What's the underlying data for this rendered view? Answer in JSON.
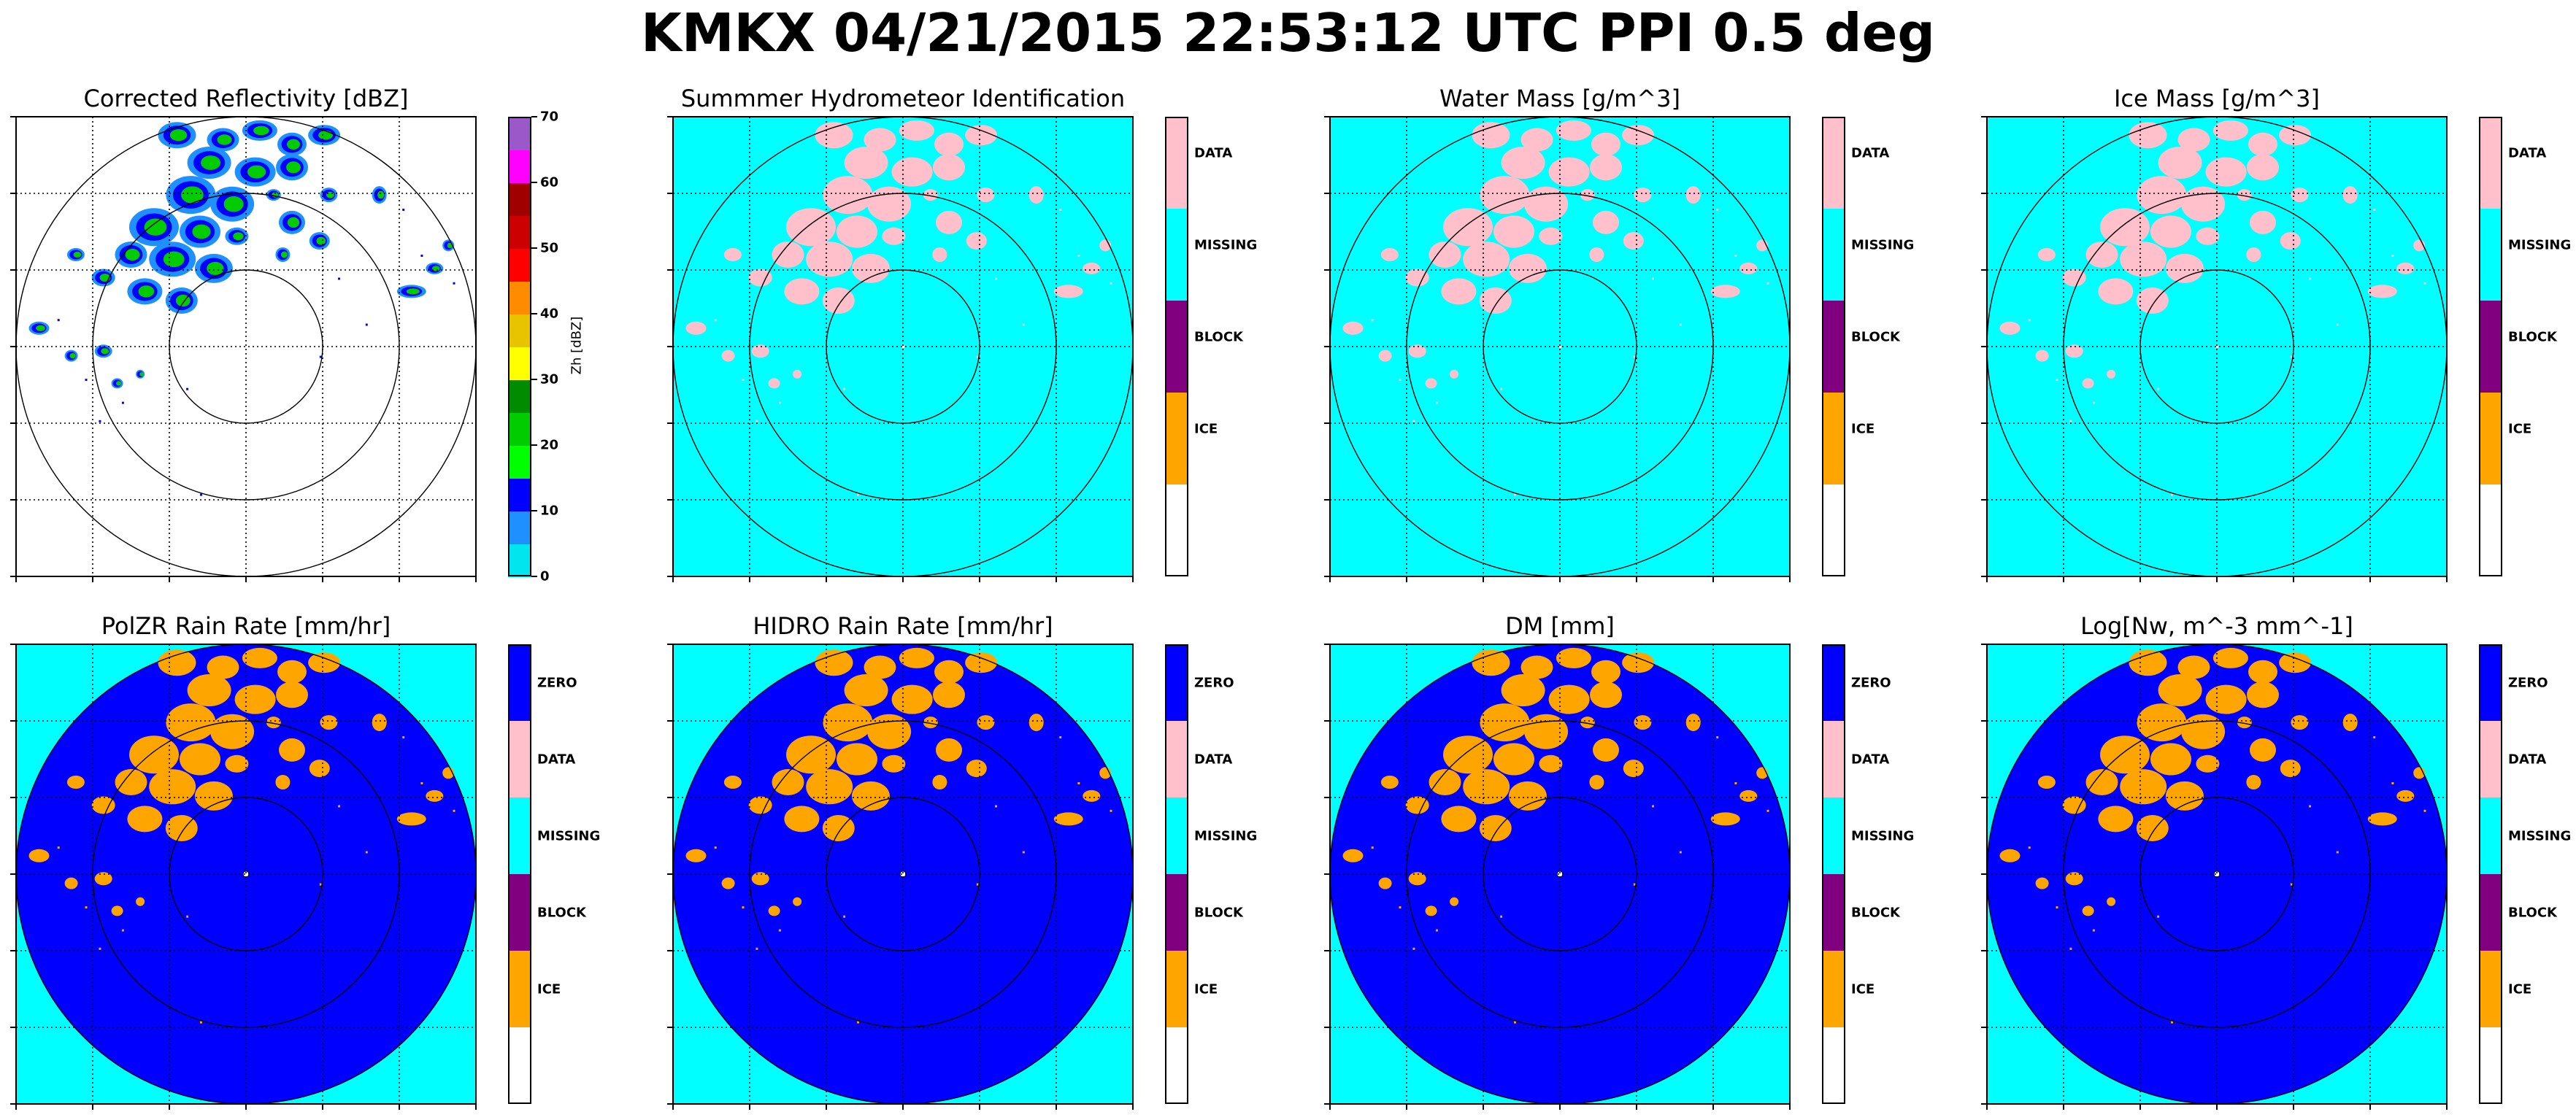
{
  "title": "KMKX 04/21/2015 22:53:12 UTC PPI 0.5 deg",
  "colors": {
    "ice": "#ffa500",
    "block": "#800080",
    "missing": "#00ffff",
    "data": "#ffc0cb",
    "zero": "#0000ff",
    "empty": "#ffffff"
  },
  "labels": {
    "data": "DATA",
    "missing": "MISSING",
    "block": "BLOCK",
    "ice": "ICE",
    "zero": "ZERO"
  },
  "reflectivity_colorbar": {
    "label": "Zh [dBZ]",
    "ticks": [
      "0",
      "10",
      "20",
      "30",
      "40",
      "50",
      "60",
      "70"
    ],
    "colors": [
      "#00e5ee",
      "#1e90ff",
      "#0000ff",
      "#00ff00",
      "#00cc00",
      "#008b00",
      "#ffff00",
      "#e8c400",
      "#ff8c00",
      "#ff0000",
      "#cc0000",
      "#a00000",
      "#ff00ff",
      "#9a58c8"
    ]
  },
  "chart_data": [
    {
      "type": "heatmap",
      "title": "Corrected Reflectivity [dBZ]",
      "kind": "reflectivity",
      "colorbar": "reflectivity_colorbar",
      "grid": true,
      "range_rings_km": [
        50,
        100,
        150
      ]
    },
    {
      "type": "heatmap",
      "title": "Summmer Hydrometeor Identification",
      "kind": "category",
      "categories_top_to_bottom": [
        "DATA",
        "MISSING",
        "BLOCK",
        "ICE",
        ""
      ],
      "background": "MISSING",
      "echo": "DATA",
      "grid": true,
      "range_rings_km": [
        50,
        100,
        150
      ]
    },
    {
      "type": "heatmap",
      "title": "Water Mass [g/m^3]",
      "kind": "category",
      "categories_top_to_bottom": [
        "DATA",
        "MISSING",
        "BLOCK",
        "ICE",
        ""
      ],
      "background": "MISSING",
      "echo": "DATA",
      "grid": true,
      "range_rings_km": [
        50,
        100,
        150
      ]
    },
    {
      "type": "heatmap",
      "title": "Ice Mass [g/m^3]",
      "kind": "category",
      "categories_top_to_bottom": [
        "DATA",
        "MISSING",
        "BLOCK",
        "ICE",
        ""
      ],
      "background": "MISSING",
      "echo": "DATA",
      "grid": true,
      "range_rings_km": [
        50,
        100,
        150
      ]
    },
    {
      "type": "heatmap",
      "title": "PolZR Rain Rate [mm/hr]",
      "kind": "rain",
      "categories_top_to_bottom": [
        "ZERO",
        "DATA",
        "MISSING",
        "BLOCK",
        "ICE",
        ""
      ],
      "background": "MISSING",
      "disk": "ZERO",
      "echo": "ICE",
      "grid": true,
      "range_rings_km": [
        50,
        100,
        150
      ]
    },
    {
      "type": "heatmap",
      "title": "HIDRO Rain Rate [mm/hr]",
      "kind": "rain",
      "categories_top_to_bottom": [
        "ZERO",
        "DATA",
        "MISSING",
        "BLOCK",
        "ICE",
        ""
      ],
      "background": "MISSING",
      "disk": "ZERO",
      "echo": "ICE",
      "grid": true,
      "range_rings_km": [
        50,
        100,
        150
      ]
    },
    {
      "type": "heatmap",
      "title": "DM [mm]",
      "kind": "rain",
      "categories_top_to_bottom": [
        "ZERO",
        "DATA",
        "MISSING",
        "BLOCK",
        "ICE",
        ""
      ],
      "background": "MISSING",
      "disk": "ZERO",
      "echo": "ICE",
      "grid": true,
      "range_rings_km": [
        50,
        100,
        150
      ]
    },
    {
      "type": "heatmap",
      "title": "Log[Nw, m^-3 mm^-1]",
      "kind": "rain",
      "categories_top_to_bottom": [
        "ZERO",
        "DATA",
        "MISSING",
        "BLOCK",
        "ICE",
        ""
      ],
      "background": "MISSING",
      "disk": "ZERO",
      "echo": "ICE",
      "grid": true,
      "range_rings_km": [
        50,
        100,
        150
      ]
    }
  ]
}
